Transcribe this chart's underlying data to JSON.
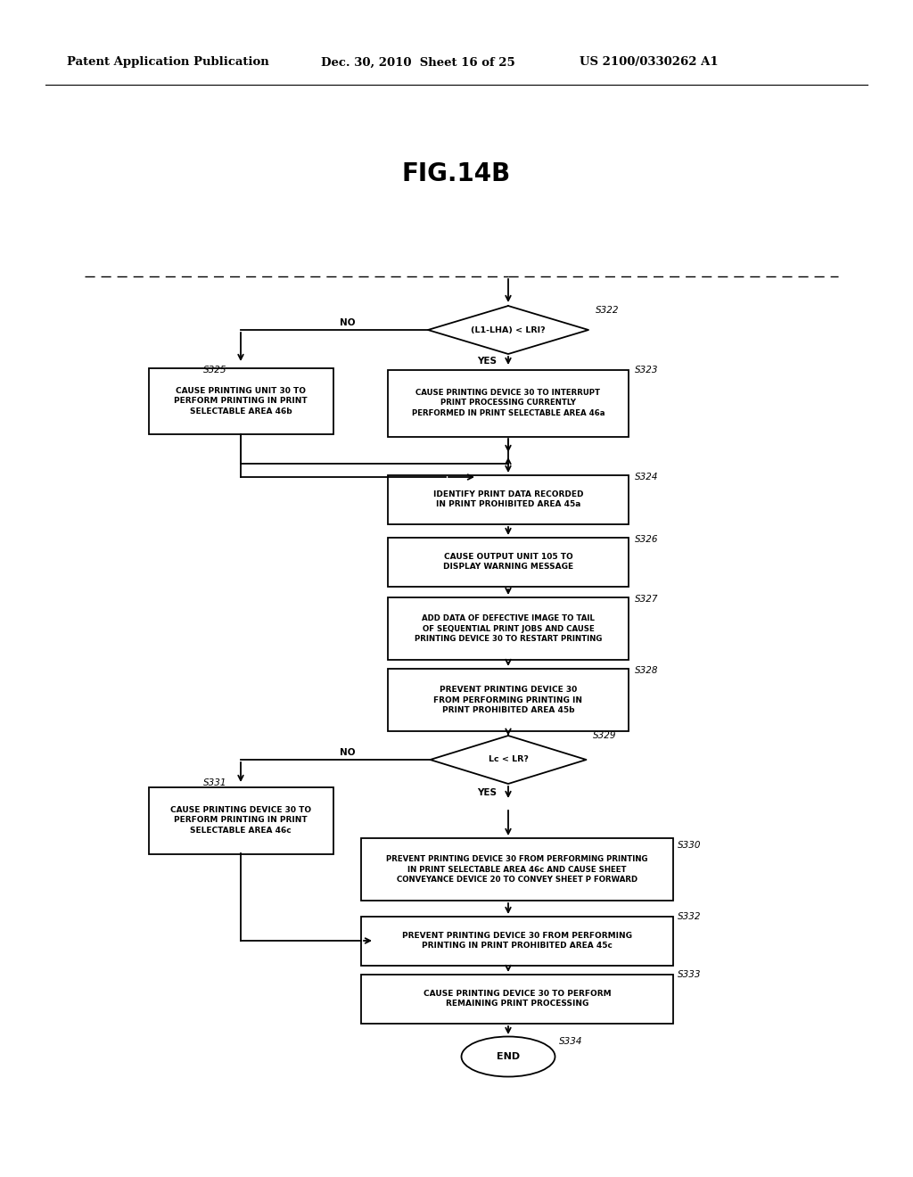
{
  "title": "FIG.14B",
  "header_left": "Patent Application Publication",
  "header_center": "Dec. 30, 2010  Sheet 16 of 25",
  "header_right": "US 2010/0330262 A1",
  "bg_color": "#ffffff",
  "fig_width": 10.24,
  "fig_height": 13.2,
  "dpi": 100
}
